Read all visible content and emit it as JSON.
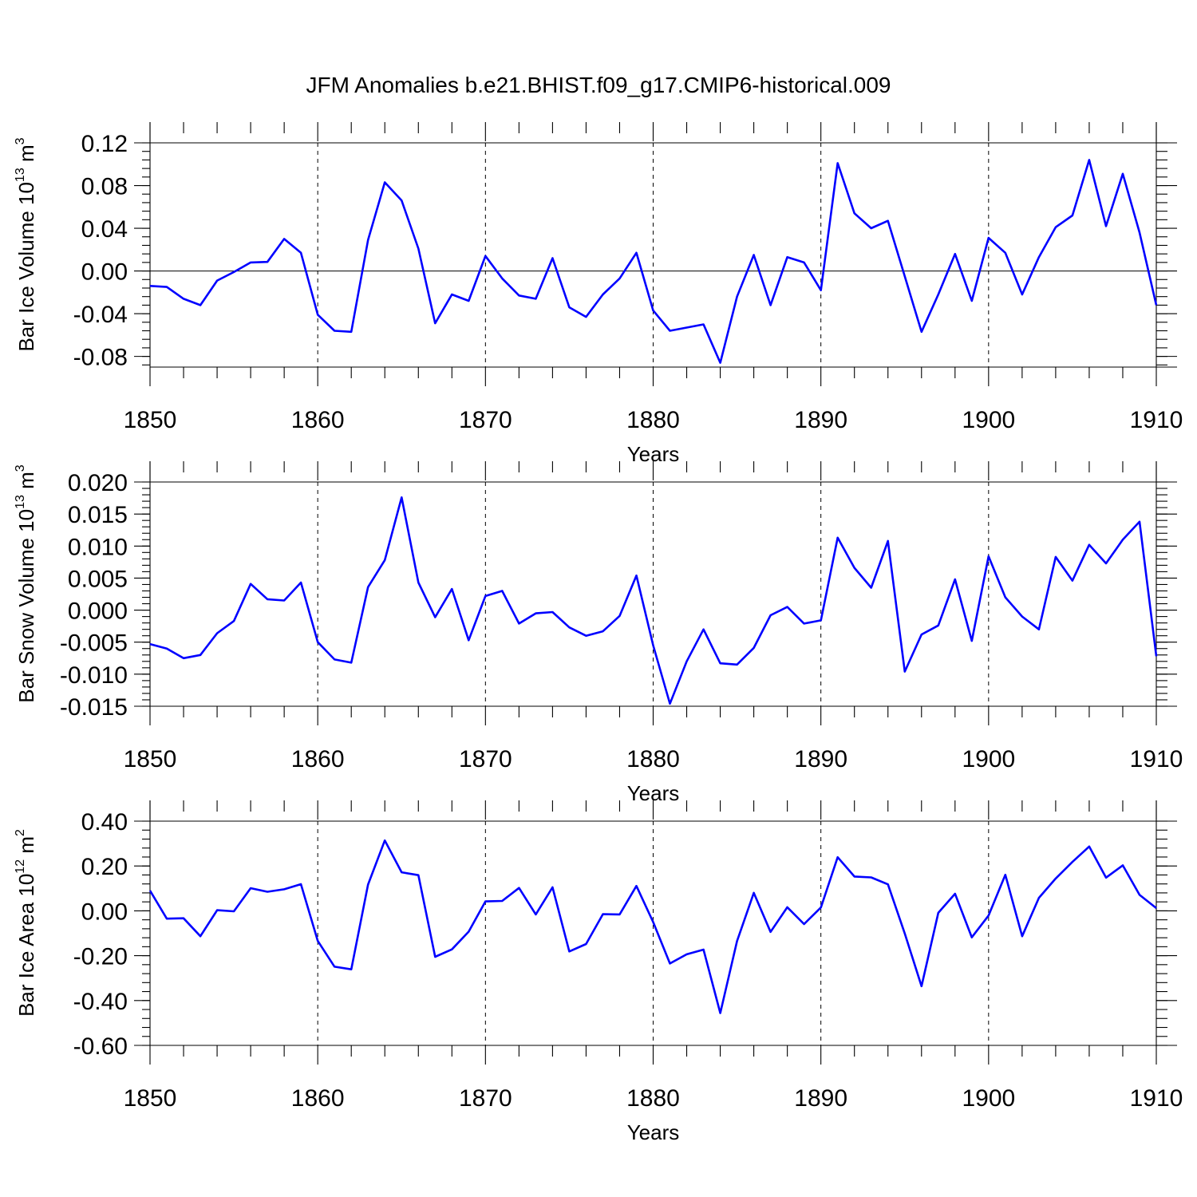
{
  "title": "JFM Anomalies b.e21.BHIST.f09_g17.CMIP6-historical.009",
  "colors": {
    "series": "#0000ff",
    "axes": "#000000"
  },
  "chart_data": [
    {
      "type": "line",
      "title": "",
      "ylabel_main": "Bar Ice Volume 10",
      "ylabel_exp": "13",
      "ylabel_unit": " m",
      "ylabel_unit_exp": "3",
      "xlabel": "Years",
      "xlim": [
        1850,
        1910
      ],
      "ylim": [
        -0.09,
        0.12
      ],
      "yticks": [
        -0.08,
        -0.04,
        0.0,
        0.04,
        0.08,
        0.12
      ],
      "ytick_labels": [
        "-0.08",
        "-0.04",
        "0.00",
        "0.04",
        "0.08",
        "0.12"
      ],
      "yminor_step": 0.008,
      "xticks": [
        1850,
        1860,
        1870,
        1880,
        1890,
        1900,
        1910
      ],
      "xtick_labels": [
        "1850",
        "1860",
        "1870",
        "1880",
        "1890",
        "1900",
        "1910"
      ],
      "grid_x": true,
      "zero_line": true,
      "start_year": 1850,
      "values": [
        -0.014,
        -0.015,
        -0.026,
        -0.032,
        -0.009,
        -0.001,
        0.008,
        0.0085,
        0.03,
        0.017,
        -0.041,
        -0.056,
        -0.057,
        0.029,
        0.083,
        0.066,
        0.021,
        -0.049,
        -0.022,
        -0.028,
        0.014,
        -0.007,
        -0.023,
        -0.026,
        0.012,
        -0.034,
        -0.043,
        -0.022,
        -0.007,
        0.017,
        -0.037,
        -0.056,
        -0.053,
        -0.05,
        -0.086,
        -0.024,
        0.015,
        -0.032,
        0.013,
        0.008,
        -0.018,
        0.101,
        0.054,
        0.04,
        0.047,
        -0.005,
        -0.057,
        -0.022,
        0.016,
        -0.028,
        0.031,
        0.017,
        -0.022,
        0.013,
        0.041,
        0.052,
        0.104,
        0.042,
        0.091,
        0.036,
        -0.032
      ]
    },
    {
      "type": "line",
      "title": "",
      "ylabel_main": "Bar Snow Volume 10",
      "ylabel_exp": "13",
      "ylabel_unit": " m",
      "ylabel_unit_exp": "3",
      "xlabel": "Years",
      "xlim": [
        1850,
        1910
      ],
      "ylim": [
        -0.015,
        0.02
      ],
      "yticks": [
        -0.015,
        -0.01,
        -0.005,
        0.0,
        0.005,
        0.01,
        0.015,
        0.02
      ],
      "ytick_labels": [
        "-0.015",
        "-0.010",
        "-0.005",
        "0.000",
        "0.005",
        "0.010",
        "0.015",
        "0.020"
      ],
      "yminor_step": 0.001,
      "xticks": [
        1850,
        1860,
        1870,
        1880,
        1890,
        1900,
        1910
      ],
      "xtick_labels": [
        "1850",
        "1860",
        "1870",
        "1880",
        "1890",
        "1900",
        "1910"
      ],
      "grid_x": true,
      "zero_line": false,
      "start_year": 1850,
      "values": [
        -0.0053,
        -0.006,
        -0.0075,
        -0.007,
        -0.0036,
        -0.0017,
        0.0041,
        0.0017,
        0.0015,
        0.0043,
        -0.005,
        -0.0077,
        -0.0082,
        0.0036,
        0.0078,
        0.0176,
        0.0043,
        -0.0011,
        0.0033,
        -0.0047,
        0.0022,
        0.003,
        -0.0021,
        -0.0005,
        -0.0003,
        -0.0027,
        -0.004,
        -0.0033,
        -0.0009,
        0.0054,
        -0.0055,
        -0.0146,
        -0.008,
        -0.003,
        -0.0083,
        -0.0085,
        -0.0059,
        -0.0008,
        0.0005,
        -0.0021,
        -0.0016,
        0.0113,
        0.0066,
        0.0035,
        0.0108,
        -0.0096,
        -0.0038,
        -0.0024,
        0.0048,
        -0.0048,
        0.0084,
        0.002,
        -0.001,
        -0.003,
        0.0083,
        0.0046,
        0.0102,
        0.0073,
        0.011,
        0.0138,
        -0.0072
      ]
    },
    {
      "type": "line",
      "title": "",
      "ylabel_main": "Bar Ice Area 10",
      "ylabel_exp": "12",
      "ylabel_unit": " m",
      "ylabel_unit_exp": "2",
      "xlabel": "Years",
      "xlim": [
        1850,
        1910
      ],
      "ylim": [
        -0.6,
        0.4
      ],
      "yticks": [
        -0.6,
        -0.4,
        -0.2,
        0.0,
        0.2,
        0.4
      ],
      "ytick_labels": [
        "-0.60",
        "-0.40",
        "-0.20",
        "0.00",
        "0.20",
        "0.40"
      ],
      "yminor_step": 0.04,
      "xticks": [
        1850,
        1860,
        1870,
        1880,
        1890,
        1900,
        1910
      ],
      "xtick_labels": [
        "1850",
        "1860",
        "1870",
        "1880",
        "1890",
        "1900",
        "1910"
      ],
      "grid_x": true,
      "zero_line": false,
      "start_year": 1850,
      "values": [
        0.09,
        -0.035,
        -0.033,
        -0.113,
        0.003,
        -0.002,
        0.101,
        0.085,
        0.096,
        0.119,
        -0.134,
        -0.249,
        -0.261,
        0.117,
        0.314,
        0.172,
        0.159,
        -0.205,
        -0.172,
        -0.093,
        0.042,
        0.044,
        0.102,
        -0.016,
        0.105,
        -0.181,
        -0.148,
        -0.015,
        -0.016,
        0.111,
        -0.05,
        -0.235,
        -0.194,
        -0.173,
        -0.456,
        -0.135,
        0.08,
        -0.094,
        0.016,
        -0.059,
        0.015,
        0.239,
        0.153,
        0.149,
        0.118,
        -0.101,
        -0.336,
        -0.009,
        0.076,
        -0.118,
        -0.021,
        0.161,
        -0.113,
        0.058,
        0.144,
        0.218,
        0.287,
        0.148,
        0.203,
        0.071,
        0.012
      ]
    }
  ]
}
